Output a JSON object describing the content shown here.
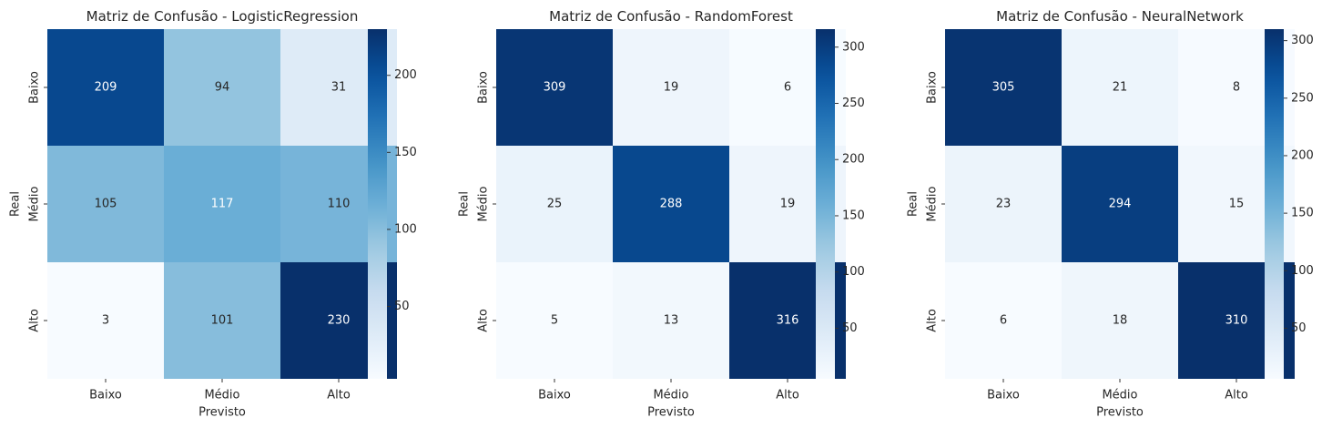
{
  "chart_data": [
    {
      "type": "heatmap",
      "title": "Matriz de Confusão - LogisticRegression",
      "xlabel": "Previsto",
      "ylabel": "Real",
      "x_categories": [
        "Baixo",
        "Médio",
        "Alto"
      ],
      "y_categories": [
        "Baixo",
        "Médio",
        "Alto"
      ],
      "values": [
        [
          209,
          94,
          31
        ],
        [
          105,
          117,
          110
        ],
        [
          3,
          101,
          230
        ]
      ],
      "colormap": "Blues",
      "colorbar": {
        "min": 3,
        "max": 230,
        "ticks": [
          50,
          100,
          150,
          200
        ]
      }
    },
    {
      "type": "heatmap",
      "title": "Matriz de Confusão - RandomForest",
      "xlabel": "Previsto",
      "ylabel": "Real",
      "x_categories": [
        "Baixo",
        "Médio",
        "Alto"
      ],
      "y_categories": [
        "Baixo",
        "Médio",
        "Alto"
      ],
      "values": [
        [
          309,
          19,
          6
        ],
        [
          25,
          288,
          19
        ],
        [
          5,
          13,
          316
        ]
      ],
      "colormap": "Blues",
      "colorbar": {
        "min": 5,
        "max": 316,
        "ticks": [
          50,
          100,
          150,
          200,
          250,
          300
        ]
      }
    },
    {
      "type": "heatmap",
      "title": "Matriz de Confusão - NeuralNetwork",
      "xlabel": "Previsto",
      "ylabel": "Real",
      "x_categories": [
        "Baixo",
        "Médio",
        "Alto"
      ],
      "y_categories": [
        "Baixo",
        "Médio",
        "Alto"
      ],
      "values": [
        [
          305,
          21,
          8
        ],
        [
          23,
          294,
          15
        ],
        [
          6,
          18,
          310
        ]
      ],
      "colormap": "Blues",
      "colorbar": {
        "min": 6,
        "max": 310,
        "ticks": [
          50,
          100,
          150,
          200,
          250,
          300
        ]
      }
    }
  ]
}
